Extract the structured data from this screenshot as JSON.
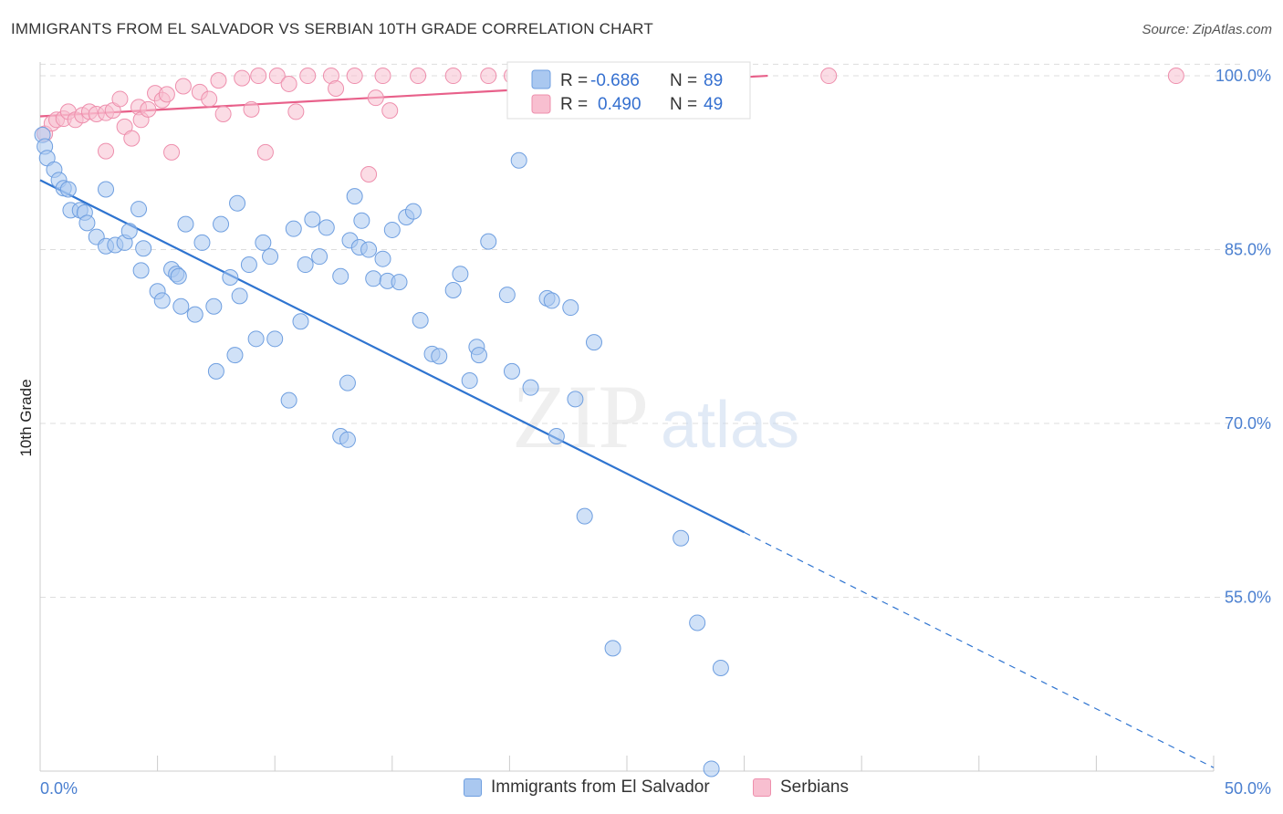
{
  "header": {
    "title": "IMMIGRANTS FROM EL SALVADOR VS SERBIAN 10TH GRADE CORRELATION CHART",
    "source": "Source: ZipAtlas.com"
  },
  "watermark": {
    "zip": "ZIP",
    "atlas": "atlas"
  },
  "colors": {
    "blue_fill": "#aac8f0",
    "blue_stroke": "#6f9fe0",
    "blue_line": "#2f74d0",
    "pink_fill": "#f8bfd0",
    "pink_stroke": "#ee8fad",
    "pink_line": "#e8608a",
    "grid": "#dddddd",
    "axis_text": "#4a7fd0"
  },
  "stats_legend": {
    "rows": [
      {
        "r_label": "R =",
        "r_value": "-0.686",
        "n_label": "N =",
        "n_value": "89"
      },
      {
        "r_label": "R =",
        "r_value": "0.490",
        "n_label": "N =",
        "n_value": "49"
      }
    ]
  },
  "bottom_legend": [
    {
      "label": "Immigrants from El Salvador"
    },
    {
      "label": "Serbians"
    }
  ],
  "chart_data": {
    "type": "scatter",
    "xlabel": "",
    "ylabel": "10th Grade",
    "xlim": [
      0,
      50
    ],
    "ylim": [
      40,
      101.5
    ],
    "x_tick_labels": [
      "0.0%",
      "50.0%"
    ],
    "y_ticks": [
      55,
      70,
      85,
      100
    ],
    "y_tick_labels": [
      "55.0%",
      "70.0%",
      "85.0%",
      "100.0%"
    ],
    "grid": true,
    "series": [
      {
        "name": "Immigrants from El Salvador",
        "color": "#aac8f0",
        "trend": {
          "x0": 0,
          "y0": 91.0,
          "x1": 30,
          "y1": 60.6,
          "dashed_to_x": 50,
          "dashed_to_y": 40.3
        },
        "points": [
          [
            0.1,
            94.9
          ],
          [
            0.2,
            93.9
          ],
          [
            0.3,
            92.9
          ],
          [
            0.6,
            91.9
          ],
          [
            0.8,
            91.0
          ],
          [
            1.0,
            90.3
          ],
          [
            1.2,
            90.2
          ],
          [
            1.3,
            88.4
          ],
          [
            1.7,
            88.4
          ],
          [
            1.9,
            88.2
          ],
          [
            2.0,
            87.3
          ],
          [
            2.4,
            86.1
          ],
          [
            2.8,
            85.3
          ],
          [
            3.2,
            85.4
          ],
          [
            3.6,
            85.6
          ],
          [
            3.8,
            86.6
          ],
          [
            2.8,
            90.2
          ],
          [
            4.2,
            88.5
          ],
          [
            4.3,
            83.2
          ],
          [
            4.4,
            85.1
          ],
          [
            5.0,
            81.4
          ],
          [
            5.2,
            80.6
          ],
          [
            5.6,
            83.3
          ],
          [
            5.8,
            82.9
          ],
          [
            5.9,
            82.7
          ],
          [
            6.0,
            80.1
          ],
          [
            6.2,
            87.2
          ],
          [
            6.6,
            79.4
          ],
          [
            6.9,
            85.6
          ],
          [
            7.4,
            80.1
          ],
          [
            7.5,
            74.5
          ],
          [
            7.7,
            87.2
          ],
          [
            8.1,
            82.6
          ],
          [
            8.3,
            75.9
          ],
          [
            8.4,
            89.0
          ],
          [
            8.5,
            81.0
          ],
          [
            8.9,
            83.7
          ],
          [
            9.2,
            77.3
          ],
          [
            9.5,
            85.6
          ],
          [
            9.8,
            84.4
          ],
          [
            10.0,
            77.3
          ],
          [
            10.6,
            72.0
          ],
          [
            10.8,
            86.8
          ],
          [
            11.1,
            78.8
          ],
          [
            11.3,
            83.7
          ],
          [
            11.6,
            87.6
          ],
          [
            11.9,
            84.4
          ],
          [
            12.2,
            86.9
          ],
          [
            12.8,
            82.7
          ],
          [
            13.1,
            73.5
          ],
          [
            13.2,
            85.8
          ],
          [
            13.4,
            89.6
          ],
          [
            13.6,
            85.2
          ],
          [
            13.7,
            87.5
          ],
          [
            14.0,
            85.0
          ],
          [
            14.2,
            82.5
          ],
          [
            14.6,
            84.2
          ],
          [
            14.8,
            82.3
          ],
          [
            15.0,
            86.7
          ],
          [
            15.3,
            82.2
          ],
          [
            15.6,
            87.8
          ],
          [
            15.9,
            88.3
          ],
          [
            12.8,
            68.9
          ],
          [
            13.1,
            68.6
          ],
          [
            16.2,
            78.9
          ],
          [
            16.7,
            76.0
          ],
          [
            17.0,
            75.8
          ],
          [
            17.6,
            81.5
          ],
          [
            17.9,
            82.9
          ],
          [
            18.3,
            73.7
          ],
          [
            18.6,
            76.6
          ],
          [
            18.7,
            75.9
          ],
          [
            19.1,
            85.7
          ],
          [
            19.9,
            81.1
          ],
          [
            20.1,
            74.5
          ],
          [
            20.4,
            92.7
          ],
          [
            20.9,
            73.1
          ],
          [
            21.6,
            80.8
          ],
          [
            21.8,
            80.6
          ],
          [
            22.0,
            68.9
          ],
          [
            22.6,
            80.0
          ],
          [
            22.8,
            72.1
          ],
          [
            23.2,
            62.0
          ],
          [
            23.6,
            77.0
          ],
          [
            24.4,
            50.6
          ],
          [
            27.3,
            60.1
          ],
          [
            28.0,
            52.8
          ],
          [
            29.0,
            48.9
          ],
          [
            28.6,
            40.2
          ]
        ]
      },
      {
        "name": "Serbians",
        "color": "#f8bfd0",
        "trend": {
          "x0": 0,
          "y0": 96.5,
          "x1": 31,
          "y1": 100.0
        },
        "points": [
          [
            0.2,
            95.0
          ],
          [
            0.5,
            95.9
          ],
          [
            0.7,
            96.2
          ],
          [
            1.0,
            96.3
          ],
          [
            1.2,
            96.9
          ],
          [
            1.5,
            96.2
          ],
          [
            1.8,
            96.6
          ],
          [
            2.1,
            96.9
          ],
          [
            2.4,
            96.7
          ],
          [
            2.8,
            96.8
          ],
          [
            3.1,
            97.0
          ],
          [
            2.8,
            93.5
          ],
          [
            3.6,
            95.6
          ],
          [
            3.9,
            94.6
          ],
          [
            4.2,
            97.3
          ],
          [
            4.3,
            96.2
          ],
          [
            4.6,
            97.1
          ],
          [
            4.9,
            98.5
          ],
          [
            5.2,
            97.9
          ],
          [
            5.4,
            98.4
          ],
          [
            6.1,
            99.1
          ],
          [
            5.6,
            93.4
          ],
          [
            6.8,
            98.6
          ],
          [
            7.2,
            98.0
          ],
          [
            7.6,
            99.6
          ],
          [
            7.8,
            96.7
          ],
          [
            8.6,
            99.8
          ],
          [
            9.0,
            97.1
          ],
          [
            9.6,
            93.4
          ],
          [
            9.3,
            100.0
          ],
          [
            10.1,
            100.0
          ],
          [
            10.6,
            99.3
          ],
          [
            10.9,
            96.9
          ],
          [
            11.4,
            100.0
          ],
          [
            12.4,
            100.0
          ],
          [
            12.6,
            98.9
          ],
          [
            13.4,
            100.0
          ],
          [
            14.0,
            91.5
          ],
          [
            14.3,
            98.1
          ],
          [
            14.6,
            100.0
          ],
          [
            14.9,
            97.0
          ],
          [
            16.1,
            100.0
          ],
          [
            17.6,
            100.0
          ],
          [
            19.1,
            100.0
          ],
          [
            20.1,
            100.0
          ],
          [
            24.2,
            100.0
          ],
          [
            33.6,
            100.0
          ],
          [
            48.4,
            100.0
          ],
          [
            3.4,
            98.0
          ]
        ]
      }
    ]
  }
}
